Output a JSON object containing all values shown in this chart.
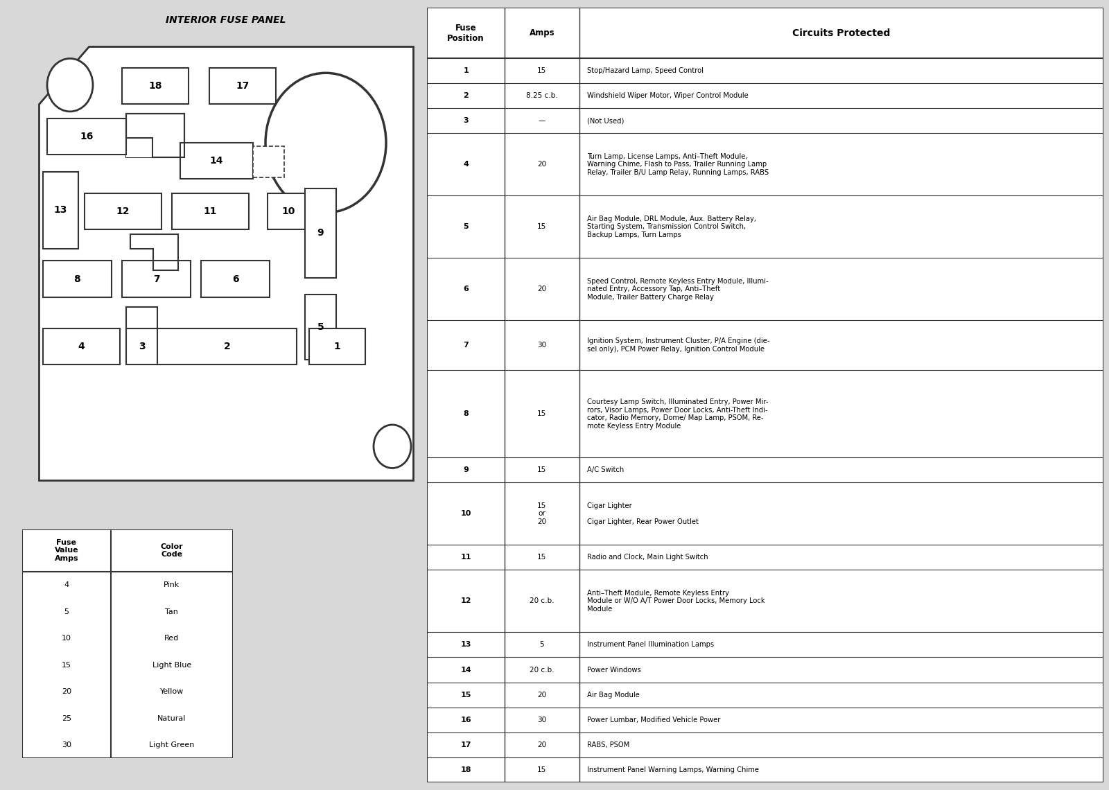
{
  "title": "INTERIOR FUSE PANEL",
  "bg_color": "#e8e8e8",
  "panel_bg": "#ffffff",
  "border_color": "#444444",
  "table_data": [
    {
      "pos": "1",
      "amps": "15",
      "circuit": "Stop/Hazard Lamp, Speed Control"
    },
    {
      "pos": "2",
      "amps": "8.25 c.b.",
      "circuit": "Windshield Wiper Motor, Wiper Control Module"
    },
    {
      "pos": "3",
      "amps": "—",
      "circuit": "(Not Used)"
    },
    {
      "pos": "4",
      "amps": "20",
      "circuit": "Turn Lamp, License Lamps, Anti–Theft Module,\nWarning Chime, Flash to Pass, Trailer Running Lamp\nRelay, Trailer B/U Lamp Relay, Running Lamps, RABS"
    },
    {
      "pos": "5",
      "amps": "15",
      "circuit": "Air Bag Module, DRL Module, Aux. Battery Relay,\nStarting System, Transmission Control Switch,\nBackup Lamps, Turn Lamps"
    },
    {
      "pos": "6",
      "amps": "20",
      "circuit": "Speed Control, Remote Keyless Entry Module, Illumi-\nnated Entry, Accessory Tap, Anti–Theft\nModule, Trailer Battery Charge Relay"
    },
    {
      "pos": "7",
      "amps": "30",
      "circuit": "Ignition System, Instrument Cluster, P/A Engine (die-\nsel only), PCM Power Relay, Ignition Control Module"
    },
    {
      "pos": "8",
      "amps": "15",
      "circuit": "Courtesy Lamp Switch, Illuminated Entry, Power Mir-\nrors, Visor Lamps, Power Door Locks, Anti-Theft Indi-\ncator, Radio Memory, Dome/ Map Lamp, PSOM, Re-\nmote Keyless Entry Module"
    },
    {
      "pos": "9",
      "amps": "15",
      "circuit": "A/C Switch"
    },
    {
      "pos": "10",
      "amps": "15\nor\n20",
      "circuit": "Cigar Lighter\n\nCigar Lighter, Rear Power Outlet"
    },
    {
      "pos": "11",
      "amps": "15",
      "circuit": "Radio and Clock, Main Light Switch"
    },
    {
      "pos": "12",
      "amps": "20 c.b.",
      "circuit": "Anti–Theft Module, Remote Keyless Entry\nModule or W/O A/T Power Door Locks, Memory Lock\nModule"
    },
    {
      "pos": "13",
      "amps": "5",
      "circuit": "Instrument Panel Illumination Lamps"
    },
    {
      "pos": "14",
      "amps": "20 c.b.",
      "circuit": "Power Windows"
    },
    {
      "pos": "15",
      "amps": "20",
      "circuit": "Air Bag Module"
    },
    {
      "pos": "16",
      "amps": "30",
      "circuit": "Power Lumbar, Modified Vehicle Power"
    },
    {
      "pos": "17",
      "amps": "20",
      "circuit": "RABS, PSOM"
    },
    {
      "pos": "18",
      "amps": "15",
      "circuit": "Instrument Panel Warning Lamps, Warning Chime"
    }
  ],
  "color_table": [
    {
      "amps": "4",
      "color": "Pink"
    },
    {
      "amps": "5",
      "color": "Tan"
    },
    {
      "amps": "10",
      "color": "Red"
    },
    {
      "amps": "15",
      "color": "Light Blue"
    },
    {
      "amps": "20",
      "color": "Yellow"
    },
    {
      "amps": "25",
      "color": "Natural"
    },
    {
      "amps": "30",
      "color": "Light Green"
    }
  ],
  "row_heights": [
    1,
    1,
    1,
    2.5,
    2.5,
    2.5,
    2,
    3.5,
    1,
    2.5,
    1,
    2.5,
    1,
    1,
    1,
    1,
    1,
    1
  ]
}
